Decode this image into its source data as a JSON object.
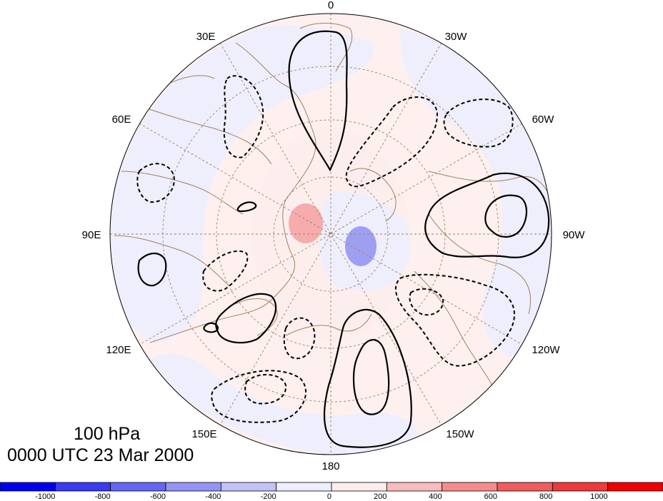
{
  "map": {
    "projection": "north-polar-stereographic",
    "longitude_labels": [
      "0",
      "30E",
      "30W",
      "60E",
      "60W",
      "90E",
      "90W",
      "120E",
      "120W",
      "150E",
      "150W",
      "180"
    ]
  },
  "caption": {
    "level": "100 hPa",
    "time": "0000 UTC 23 Mar 2000"
  },
  "colorbar": {
    "colors": [
      "#0000f0",
      "#3a3af2",
      "#6666f4",
      "#9494f6",
      "#c2c2f8",
      "#eeeefc",
      "#fdecec",
      "#f9bcbc",
      "#f58c8c",
      "#f15c5c",
      "#ee3a3a",
      "#f00000"
    ],
    "tick_labels": [
      "-1000",
      "-800",
      "-600",
      "-400",
      "-200",
      "0",
      "200",
      "400",
      "600",
      "800",
      "1000"
    ]
  },
  "colors": {
    "land_outline": "#a08060",
    "graticule": "#a08060",
    "contour": "#000000",
    "positive_shading": "#f5a0a0",
    "negative_shading": "#9090f0",
    "faint_positive": "#fdeeee",
    "faint_negative": "#eeeefc"
  }
}
